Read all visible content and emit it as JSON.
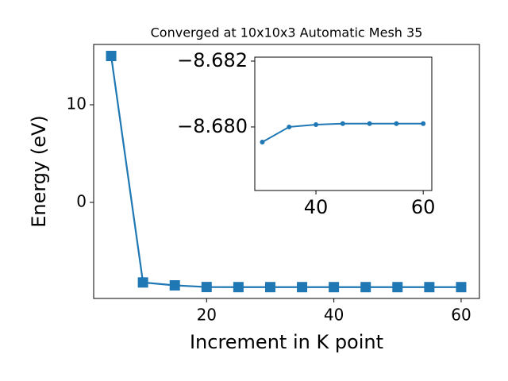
{
  "chart_data": [
    {
      "type": "line",
      "title": "Converged at 10x10x3 Automatic Mesh 35",
      "x_label": "Increment in K point",
      "y_label": "Energy (eV)",
      "x": [
        5,
        10,
        15,
        20,
        25,
        30,
        35,
        40,
        45,
        50,
        55,
        60
      ],
      "series": [
        {
          "name": "Energy",
          "color": "#1f77b4",
          "marker": "square",
          "values": [
            15,
            -8.2,
            -8.5,
            -8.67,
            -8.679,
            -8.67954,
            -8.68,
            -8.68007,
            -8.6801,
            -8.6801,
            -8.6801,
            -8.6801
          ]
        }
      ],
      "xlim": [
        2.25,
        62.875
      ],
      "xticks": [
        20,
        40,
        60
      ],
      "ylim": [
        -9.84,
        16.18
      ],
      "yticks": [
        0,
        10
      ]
    },
    {
      "type": "line",
      "x": [
        30,
        35,
        40,
        45,
        50,
        55,
        60
      ],
      "series": [
        {
          "name": "Energy",
          "color": "#1f77b4",
          "marker": "circle",
          "values": [
            -8.67954,
            -8.68,
            -8.68007,
            -8.6801,
            -8.6801,
            -8.6801,
            -8.6801
          ]
        }
      ],
      "xlim": [
        28.6,
        61.6
      ],
      "xticks": [
        40,
        60
      ],
      "ylim": [
        -8.67807,
        -8.68212
      ],
      "yticks": [
        {
          "value": -8.682,
          "label": "−8.682"
        },
        {
          "value": -8.68,
          "label": "−8.680"
        }
      ]
    }
  ]
}
